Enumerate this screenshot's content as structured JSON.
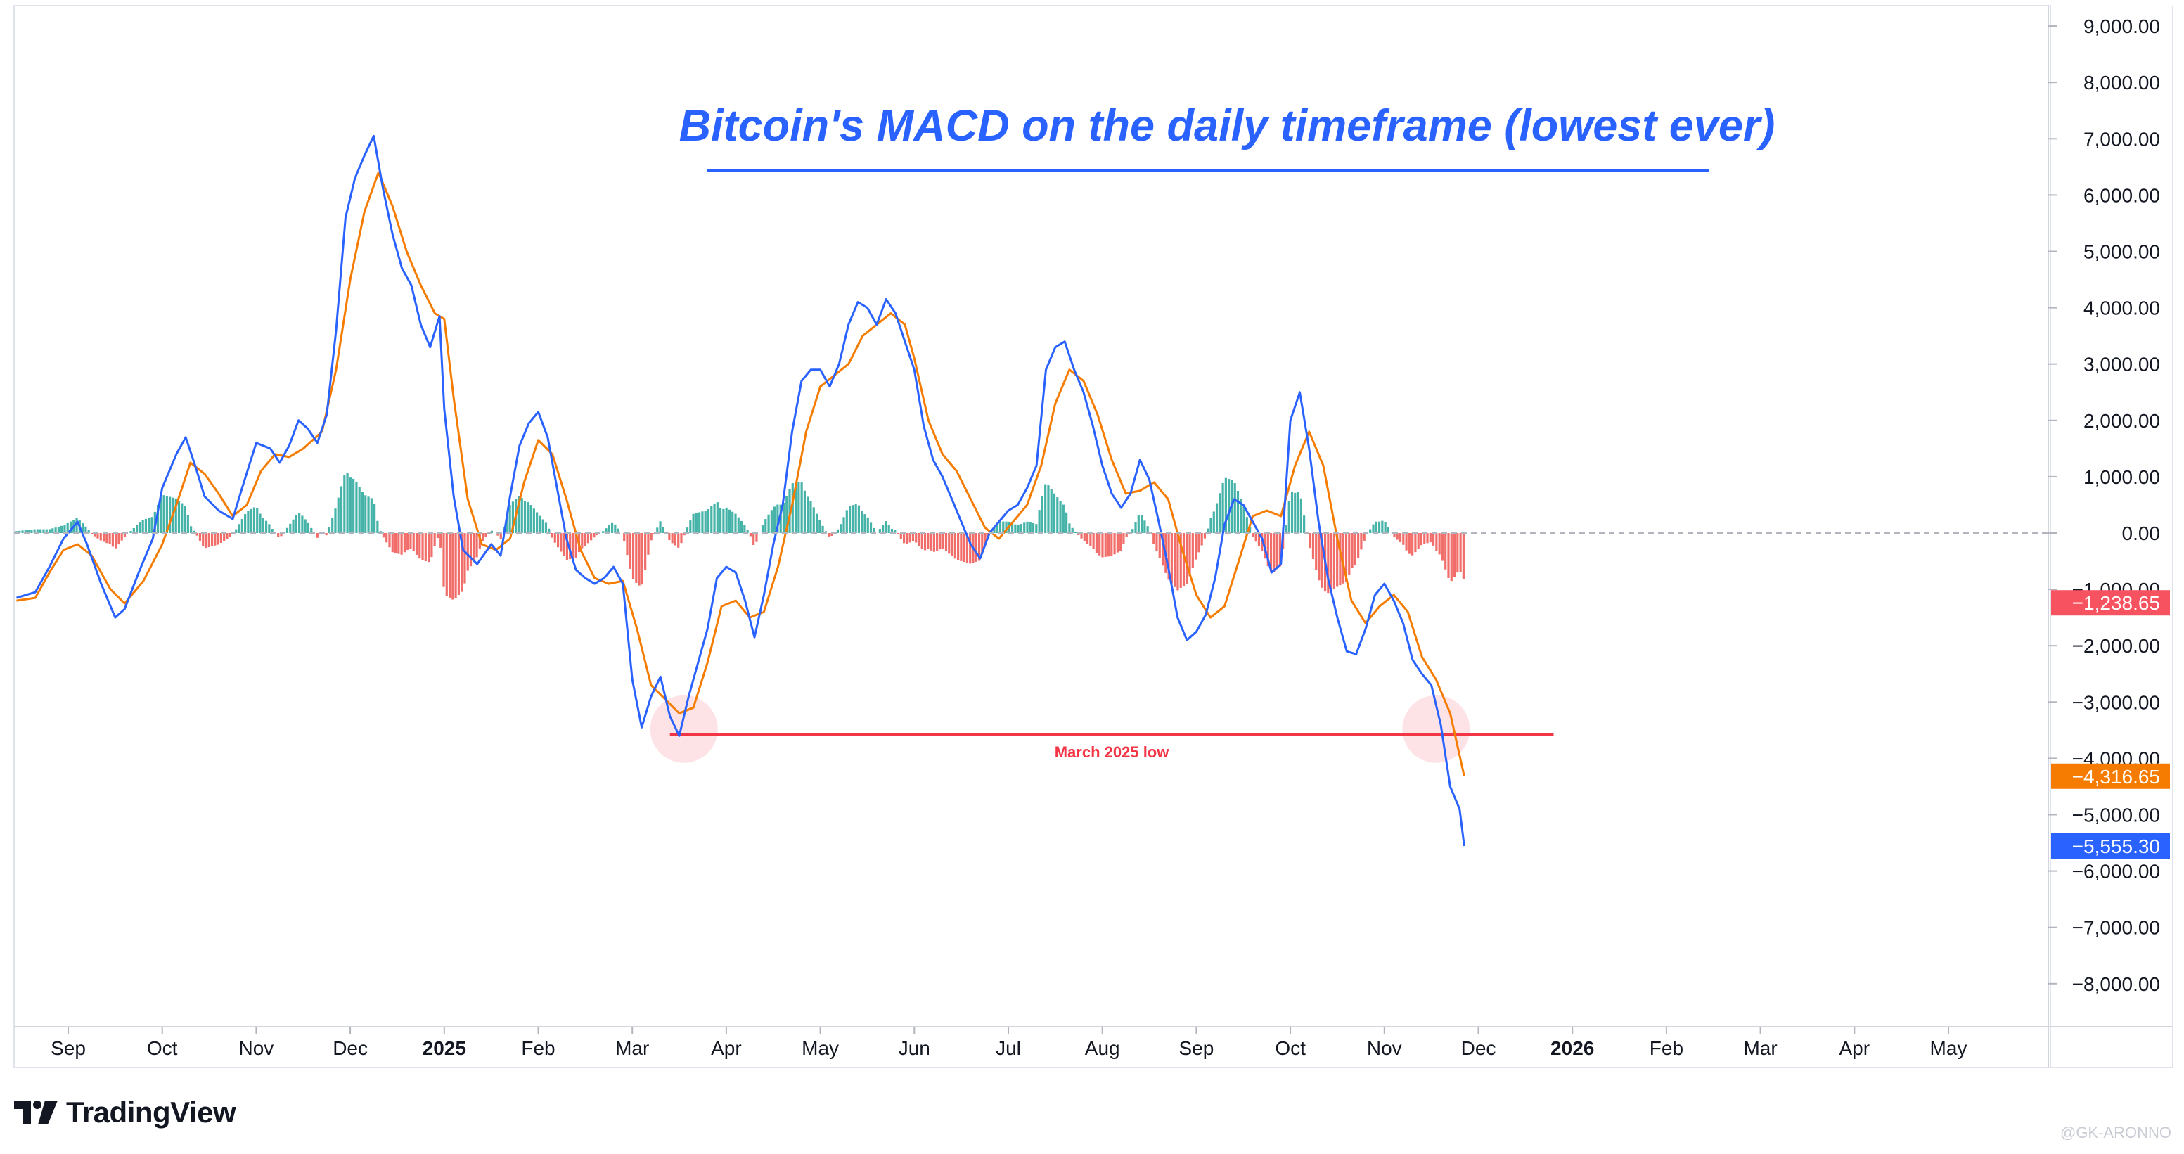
{
  "chart_data": {
    "type": "line",
    "title": "Bitcoin's MACD on the daily timeframe (lowest ever)",
    "x_ticks": [
      {
        "label": "Sep",
        "bold": false
      },
      {
        "label": "Oct",
        "bold": false
      },
      {
        "label": "Nov",
        "bold": false
      },
      {
        "label": "Dec",
        "bold": false
      },
      {
        "label": "2025",
        "bold": true
      },
      {
        "label": "Feb",
        "bold": false
      },
      {
        "label": "Mar",
        "bold": false
      },
      {
        "label": "Apr",
        "bold": false
      },
      {
        "label": "May",
        "bold": false
      },
      {
        "label": "Jun",
        "bold": false
      },
      {
        "label": "Jul",
        "bold": false
      },
      {
        "label": "Aug",
        "bold": false
      },
      {
        "label": "Sep",
        "bold": false
      },
      {
        "label": "Oct",
        "bold": false
      },
      {
        "label": "Nov",
        "bold": false
      },
      {
        "label": "Dec",
        "bold": false
      },
      {
        "label": "2026",
        "bold": true
      },
      {
        "label": "Feb",
        "bold": false
      },
      {
        "label": "Mar",
        "bold": false
      },
      {
        "label": "Apr",
        "bold": false
      },
      {
        "label": "May",
        "bold": false
      }
    ],
    "y_ticks": [
      "9,000.00",
      "8,000.00",
      "7,000.00",
      "6,000.00",
      "5,000.00",
      "4,000.00",
      "3,000.00",
      "2,000.00",
      "1,000.00",
      "0.00",
      "−1,000.00",
      "−2,000.00",
      "−3,000.00",
      "−4,000.00",
      "−5,000.00",
      "−6,000.00",
      "−7,000.00",
      "−8,000.00"
    ],
    "ylim": [
      -8500,
      9200
    ],
    "x_range": [
      -0.55,
      20.9
    ],
    "series": [
      {
        "name": "MACD",
        "color": "#2962ff",
        "points": [
          [
            -0.55,
            -1150
          ],
          [
            -0.35,
            -1050
          ],
          [
            -0.2,
            -600
          ],
          [
            -0.05,
            -100
          ],
          [
            0.1,
            200
          ],
          [
            0.2,
            -200
          ],
          [
            0.35,
            -900
          ],
          [
            0.5,
            -1500
          ],
          [
            0.6,
            -1350
          ],
          [
            0.75,
            -700
          ],
          [
            0.9,
            -100
          ],
          [
            1.0,
            800
          ],
          [
            1.15,
            1400
          ],
          [
            1.25,
            1700
          ],
          [
            1.35,
            1200
          ],
          [
            1.45,
            650
          ],
          [
            1.6,
            400
          ],
          [
            1.75,
            250
          ],
          [
            1.85,
            800
          ],
          [
            2.0,
            1600
          ],
          [
            2.15,
            1500
          ],
          [
            2.25,
            1250
          ],
          [
            2.35,
            1550
          ],
          [
            2.45,
            2000
          ],
          [
            2.55,
            1850
          ],
          [
            2.65,
            1600
          ],
          [
            2.75,
            2100
          ],
          [
            2.85,
            3600
          ],
          [
            2.95,
            5600
          ],
          [
            3.05,
            6300
          ],
          [
            3.15,
            6700
          ],
          [
            3.25,
            7050
          ],
          [
            3.35,
            6100
          ],
          [
            3.45,
            5300
          ],
          [
            3.55,
            4700
          ],
          [
            3.65,
            4400
          ],
          [
            3.75,
            3700
          ],
          [
            3.85,
            3300
          ],
          [
            3.95,
            3850
          ],
          [
            4.0,
            2200
          ],
          [
            4.1,
            650
          ],
          [
            4.2,
            -300
          ],
          [
            4.35,
            -550
          ],
          [
            4.5,
            -200
          ],
          [
            4.6,
            -400
          ],
          [
            4.7,
            650
          ],
          [
            4.8,
            1550
          ],
          [
            4.9,
            1950
          ],
          [
            5.0,
            2150
          ],
          [
            5.1,
            1700
          ],
          [
            5.2,
            800
          ],
          [
            5.3,
            -100
          ],
          [
            5.4,
            -650
          ],
          [
            5.5,
            -800
          ],
          [
            5.6,
            -900
          ],
          [
            5.7,
            -800
          ],
          [
            5.8,
            -600
          ],
          [
            5.9,
            -900
          ],
          [
            6.0,
            -2600
          ],
          [
            6.1,
            -3450
          ],
          [
            6.2,
            -2900
          ],
          [
            6.3,
            -2550
          ],
          [
            6.4,
            -3250
          ],
          [
            6.5,
            -3600
          ],
          [
            6.6,
            -2900
          ],
          [
            6.7,
            -2300
          ],
          [
            6.8,
            -1700
          ],
          [
            6.9,
            -800
          ],
          [
            7.0,
            -600
          ],
          [
            7.1,
            -700
          ],
          [
            7.2,
            -1200
          ],
          [
            7.3,
            -1850
          ],
          [
            7.4,
            -1100
          ],
          [
            7.5,
            -200
          ],
          [
            7.6,
            500
          ],
          [
            7.7,
            1800
          ],
          [
            7.8,
            2700
          ],
          [
            7.9,
            2900
          ],
          [
            8.0,
            2900
          ],
          [
            8.1,
            2600
          ],
          [
            8.2,
            3000
          ],
          [
            8.3,
            3700
          ],
          [
            8.4,
            4100
          ],
          [
            8.5,
            4000
          ],
          [
            8.6,
            3700
          ],
          [
            8.7,
            4150
          ],
          [
            8.8,
            3900
          ],
          [
            8.9,
            3400
          ],
          [
            9.0,
            2900
          ],
          [
            9.1,
            1900
          ],
          [
            9.2,
            1300
          ],
          [
            9.3,
            1000
          ],
          [
            9.4,
            600
          ],
          [
            9.5,
            200
          ],
          [
            9.6,
            -200
          ],
          [
            9.7,
            -450
          ],
          [
            9.8,
            0
          ],
          [
            9.9,
            200
          ],
          [
            10.0,
            400
          ],
          [
            10.1,
            500
          ],
          [
            10.2,
            800
          ],
          [
            10.3,
            1200
          ],
          [
            10.4,
            2900
          ],
          [
            10.5,
            3300
          ],
          [
            10.6,
            3400
          ],
          [
            10.7,
            2900
          ],
          [
            10.8,
            2500
          ],
          [
            10.9,
            1900
          ],
          [
            11.0,
            1200
          ],
          [
            11.1,
            700
          ],
          [
            11.2,
            450
          ],
          [
            11.3,
            700
          ],
          [
            11.4,
            1300
          ],
          [
            11.5,
            950
          ],
          [
            11.6,
            200
          ],
          [
            11.7,
            -600
          ],
          [
            11.8,
            -1500
          ],
          [
            11.9,
            -1900
          ],
          [
            12.0,
            -1750
          ],
          [
            12.1,
            -1450
          ],
          [
            12.2,
            -800
          ],
          [
            12.3,
            150
          ],
          [
            12.4,
            600
          ],
          [
            12.5,
            500
          ],
          [
            12.6,
            200
          ],
          [
            12.7,
            -100
          ],
          [
            12.8,
            -700
          ],
          [
            12.9,
            -550
          ],
          [
            13.0,
            2000
          ],
          [
            13.1,
            2500
          ],
          [
            13.2,
            1500
          ],
          [
            13.3,
            200
          ],
          [
            13.4,
            -800
          ],
          [
            13.5,
            -1500
          ],
          [
            13.6,
            -2100
          ],
          [
            13.7,
            -2150
          ],
          [
            13.8,
            -1700
          ],
          [
            13.9,
            -1100
          ],
          [
            14.0,
            -900
          ],
          [
            14.1,
            -1200
          ],
          [
            14.2,
            -1600
          ],
          [
            14.3,
            -2250
          ],
          [
            14.4,
            -2500
          ],
          [
            14.5,
            -2700
          ],
          [
            14.6,
            -3400
          ],
          [
            14.7,
            -4500
          ],
          [
            14.8,
            -4900
          ],
          [
            14.85,
            -5555
          ]
        ]
      },
      {
        "name": "Signal",
        "color": "#f57c00",
        "points": [
          [
            -0.55,
            -1200
          ],
          [
            -0.35,
            -1150
          ],
          [
            -0.2,
            -700
          ],
          [
            -0.05,
            -300
          ],
          [
            0.1,
            -200
          ],
          [
            0.25,
            -400
          ],
          [
            0.45,
            -1000
          ],
          [
            0.6,
            -1250
          ],
          [
            0.8,
            -850
          ],
          [
            1.0,
            -200
          ],
          [
            1.15,
            500
          ],
          [
            1.3,
            1250
          ],
          [
            1.45,
            1050
          ],
          [
            1.6,
            700
          ],
          [
            1.75,
            300
          ],
          [
            1.9,
            500
          ],
          [
            2.05,
            1100
          ],
          [
            2.2,
            1400
          ],
          [
            2.35,
            1350
          ],
          [
            2.5,
            1500
          ],
          [
            2.7,
            1800
          ],
          [
            2.85,
            2900
          ],
          [
            3.0,
            4500
          ],
          [
            3.15,
            5700
          ],
          [
            3.3,
            6400
          ],
          [
            3.45,
            5800
          ],
          [
            3.6,
            5000
          ],
          [
            3.75,
            4400
          ],
          [
            3.9,
            3900
          ],
          [
            4.0,
            3800
          ],
          [
            4.1,
            2400
          ],
          [
            4.25,
            600
          ],
          [
            4.4,
            -200
          ],
          [
            4.55,
            -300
          ],
          [
            4.7,
            -100
          ],
          [
            4.85,
            900
          ],
          [
            5.0,
            1650
          ],
          [
            5.15,
            1400
          ],
          [
            5.3,
            600
          ],
          [
            5.45,
            -300
          ],
          [
            5.6,
            -800
          ],
          [
            5.75,
            -900
          ],
          [
            5.9,
            -850
          ],
          [
            6.05,
            -1700
          ],
          [
            6.2,
            -2700
          ],
          [
            6.35,
            -2950
          ],
          [
            6.5,
            -3200
          ],
          [
            6.65,
            -3100
          ],
          [
            6.8,
            -2300
          ],
          [
            6.95,
            -1300
          ],
          [
            7.1,
            -1200
          ],
          [
            7.25,
            -1500
          ],
          [
            7.4,
            -1400
          ],
          [
            7.55,
            -600
          ],
          [
            7.7,
            500
          ],
          [
            7.85,
            1800
          ],
          [
            8.0,
            2600
          ],
          [
            8.15,
            2800
          ],
          [
            8.3,
            3000
          ],
          [
            8.45,
            3500
          ],
          [
            8.6,
            3700
          ],
          [
            8.75,
            3900
          ],
          [
            8.9,
            3700
          ],
          [
            9.0,
            3100
          ],
          [
            9.15,
            2000
          ],
          [
            9.3,
            1400
          ],
          [
            9.45,
            1100
          ],
          [
            9.6,
            600
          ],
          [
            9.75,
            100
          ],
          [
            9.9,
            -100
          ],
          [
            10.05,
            200
          ],
          [
            10.2,
            500
          ],
          [
            10.35,
            1200
          ],
          [
            10.5,
            2300
          ],
          [
            10.65,
            2900
          ],
          [
            10.8,
            2700
          ],
          [
            10.95,
            2100
          ],
          [
            11.1,
            1300
          ],
          [
            11.25,
            700
          ],
          [
            11.4,
            750
          ],
          [
            11.55,
            900
          ],
          [
            11.7,
            600
          ],
          [
            11.85,
            -300
          ],
          [
            12.0,
            -1100
          ],
          [
            12.15,
            -1500
          ],
          [
            12.3,
            -1300
          ],
          [
            12.45,
            -500
          ],
          [
            12.6,
            300
          ],
          [
            12.75,
            400
          ],
          [
            12.9,
            300
          ],
          [
            13.05,
            1200
          ],
          [
            13.2,
            1800
          ],
          [
            13.35,
            1200
          ],
          [
            13.5,
            -100
          ],
          [
            13.65,
            -1200
          ],
          [
            13.8,
            -1600
          ],
          [
            13.95,
            -1300
          ],
          [
            14.1,
            -1100
          ],
          [
            14.25,
            -1400
          ],
          [
            14.4,
            -2200
          ],
          [
            14.55,
            -2600
          ],
          [
            14.7,
            -3200
          ],
          [
            14.85,
            -4317
          ]
        ]
      }
    ],
    "histogram_color_pos": "#26a69a",
    "histogram_color_neg": "#ef5350",
    "last_values": [
      {
        "label": "−1,238.65",
        "value": -1238.65,
        "color": "#f7525f",
        "series": "Histogram"
      },
      {
        "label": "−4,316.65",
        "value": -4316.65,
        "color": "#f57c00",
        "series": "Signal"
      },
      {
        "label": "−5,555.30",
        "value": -5555.3,
        "color": "#2962ff",
        "series": "MACD"
      }
    ],
    "annotations": {
      "march_low_label": "March 2025 low",
      "march_low_value": -3580,
      "march_low_x_range": [
        6.4,
        15.8
      ],
      "highlight_circles": [
        [
          6.55,
          -3480
        ],
        [
          14.55,
          -3480
        ]
      ],
      "line_color": "#f23645"
    }
  },
  "branding": {
    "name": "TradingView",
    "watermark": "@GK-ARONNO"
  }
}
